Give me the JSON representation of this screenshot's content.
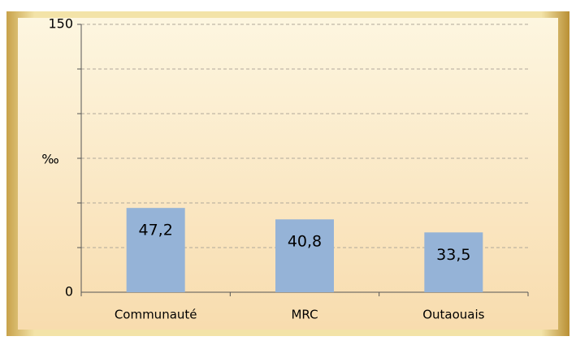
{
  "chart_data": {
    "type": "bar",
    "y_axis_label": "‰",
    "categories": [
      "Communauté",
      "MRC",
      "Outaouais"
    ],
    "values": [
      47.2,
      40.8,
      33.5
    ],
    "value_labels": [
      "47,2",
      "40,8",
      "33,5"
    ],
    "color": "#95b3d7",
    "ylim": [
      0,
      150
    ],
    "yticks": [
      0,
      150
    ],
    "y_minor_ticks": [
      25,
      50,
      75,
      100,
      125
    ],
    "grid": true
  }
}
